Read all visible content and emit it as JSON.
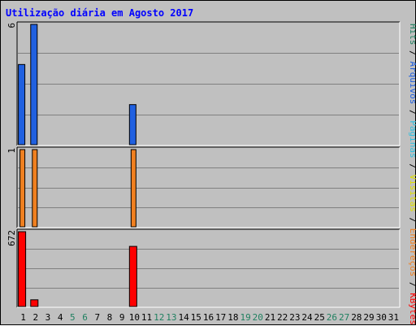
{
  "chart_data": {
    "type": "bar",
    "title": "Utilização diária em Agosto 2017",
    "categories": [
      "1",
      "2",
      "3",
      "4",
      "5",
      "6",
      "7",
      "8",
      "9",
      "10",
      "11",
      "12",
      "13",
      "14",
      "15",
      "16",
      "17",
      "18",
      "19",
      "20",
      "21",
      "22",
      "23",
      "24",
      "25",
      "26",
      "27",
      "28",
      "29",
      "30",
      "31"
    ],
    "weekend_days": [
      "5",
      "6",
      "12",
      "13",
      "19",
      "20",
      "26",
      "27"
    ],
    "panels": [
      {
        "id": "top",
        "max_label": "6",
        "ymax": 6,
        "series": [
          {
            "name": "Arquivos",
            "color": "#2060e0",
            "values": [
              4,
              6,
              0,
              0,
              0,
              0,
              0,
              0,
              0,
              2,
              0,
              0,
              0,
              0,
              0,
              0,
              0,
              0,
              0,
              0,
              0,
              0,
              0,
              0,
              0,
              0,
              0,
              0,
              0,
              0,
              0
            ]
          }
        ]
      },
      {
        "id": "middle",
        "max_label": "1",
        "ymax": 1,
        "series": [
          {
            "name": "Endereços",
            "color": "#f08020",
            "values": [
              1,
              1,
              0,
              0,
              0,
              0,
              0,
              0,
              0,
              1,
              0,
              0,
              0,
              0,
              0,
              0,
              0,
              0,
              0,
              0,
              0,
              0,
              0,
              0,
              0,
              0,
              0,
              0,
              0,
              0,
              0
            ]
          }
        ]
      },
      {
        "id": "bottom",
        "max_label": "672",
        "ymax": 672,
        "series": [
          {
            "name": "KBytes",
            "color": "#ff0000",
            "values": [
              672,
              60,
              0,
              0,
              0,
              0,
              0,
              0,
              0,
              540,
              0,
              0,
              0,
              0,
              0,
              0,
              0,
              0,
              0,
              0,
              0,
              0,
              0,
              0,
              0,
              0,
              0,
              0,
              0,
              0,
              0
            ]
          }
        ]
      }
    ],
    "legend_right": [
      {
        "text": "Hits",
        "color": "#208060"
      },
      {
        "text": " / ",
        "color": "#000000"
      },
      {
        "text": "Arquivos",
        "color": "#2060e0"
      },
      {
        "text": " / ",
        "color": "#000000"
      },
      {
        "text": "Páginas",
        "color": "#30c0e0"
      },
      {
        "text": " / ",
        "color": "#000000"
      },
      {
        "text": "Visitas",
        "color": "#e0e000"
      },
      {
        "text": " / ",
        "color": "#000000"
      },
      {
        "text": "Endereços",
        "color": "#f08020"
      },
      {
        "text": " / ",
        "color": "#000000"
      },
      {
        "text": "KBytes",
        "color": "#ff0000"
      }
    ],
    "colors": {
      "background": "#c0c0c0",
      "title": "#0000ff",
      "weekday_label": "#000000",
      "weekend_label": "#208060",
      "gridline": "#808080"
    }
  }
}
